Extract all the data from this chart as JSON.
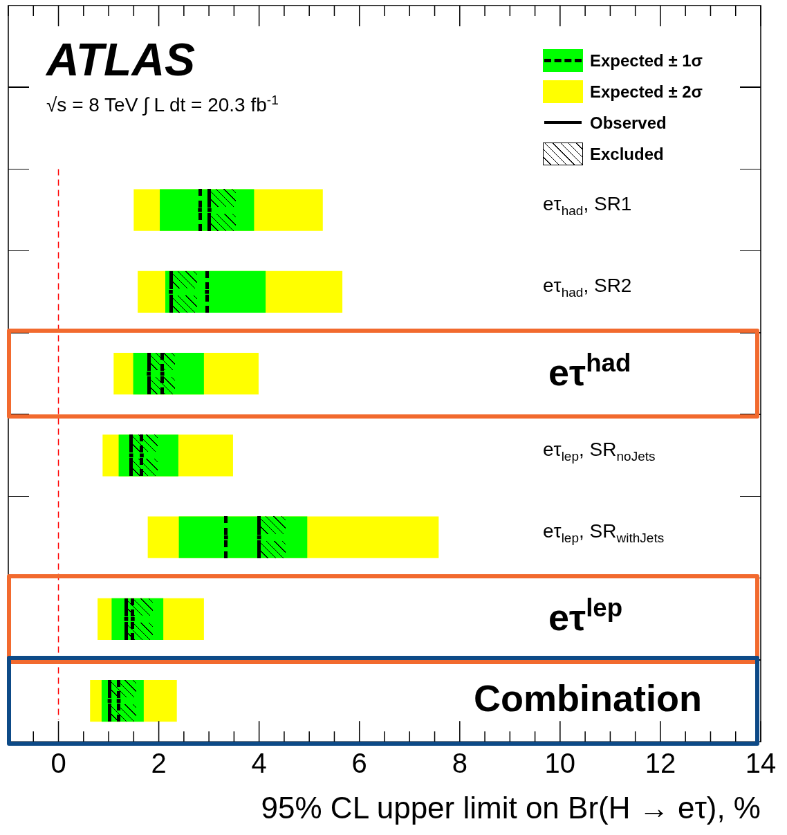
{
  "chart_data": {
    "type": "bar",
    "orientation": "horizontal",
    "title": "ATLAS",
    "subtitle": "√s = 8 TeV  ∫ L dt = 20.3 fb$^{-1}$",
    "xlabel": "95% CL upper limit on Br(H → eτ), %",
    "categories": [
      "eτ$_{had}$, SR1",
      "eτ$_{had}$, SR2",
      "eτ$^{had}$",
      "eτ$_{lep}$, SR$_{noJets}$",
      "eτ$_{lep}$, SR$_{withJets}$",
      "eτ$^{lep}$",
      "Combination"
    ],
    "series": [
      {
        "name": "Expected ± 1σ",
        "color": "#00ff00",
        "base": [
          2.02,
          2.13,
          1.49,
          1.2,
          2.4,
          1.06,
          0.86
        ],
        "values": [
          1.88,
          2.0,
          1.41,
          1.19,
          2.56,
          1.03,
          0.84
        ]
      },
      {
        "type": "scatter",
        "color": "#000000",
        "line_style": "dashed",
        "marker": "square",
        "values": [
          2.82,
          2.96,
          2.07,
          1.66,
          3.34,
          1.48,
          1.2
        ]
      },
      {
        "name": "Expected ± 2σ",
        "color": "#ffff00",
        "base": [
          1.5,
          1.58,
          1.1,
          0.88,
          1.78,
          0.78,
          0.63
        ],
        "values": [
          3.77,
          4.08,
          2.89,
          2.6,
          5.8,
          2.12,
          1.73
        ]
      },
      {
        "name": "Observed",
        "type": "scatter",
        "color": "#000000",
        "line_style": "solid",
        "marker": "square",
        "values": [
          3.01,
          2.24,
          1.8,
          1.45,
          4.0,
          1.35,
          1.02
        ]
      }
    ],
    "annotations": [
      "Excluded"
    ],
    "xlim": [
      -1,
      14
    ],
    "xticks": [
      0,
      2,
      4,
      6,
      8,
      10,
      12,
      14
    ],
    "ref_lines": [
      {
        "axis": "x",
        "value": 0,
        "color": "#ff0000",
        "line_style": "dashed"
      }
    ],
    "legend": "top right",
    "grid": false
  }
}
